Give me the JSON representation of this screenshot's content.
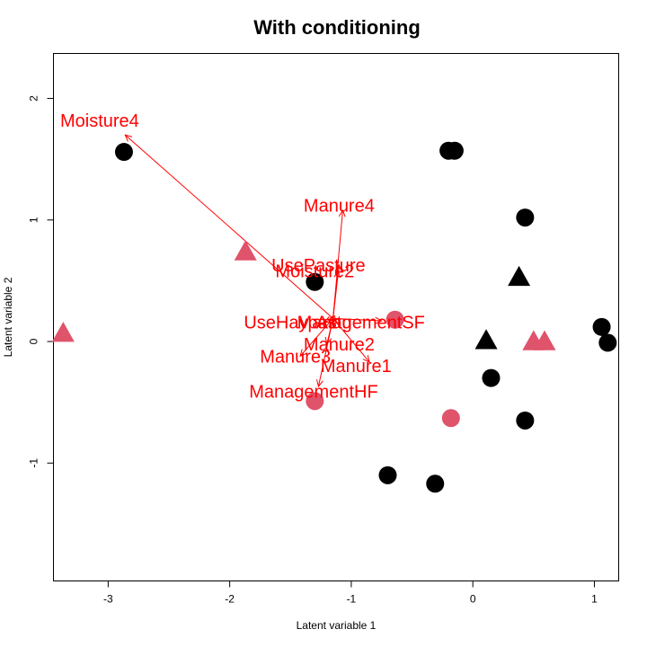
{
  "chart_data": {
    "type": "scatter",
    "title": "With conditioning",
    "xlabel": "Latent variable 1",
    "ylabel": "Latent variable 2",
    "xlim": [
      -3.45,
      1.2
    ],
    "ylim": [
      -1.97,
      2.37
    ],
    "xticks": [
      -3,
      -2,
      -1,
      0,
      1
    ],
    "yticks": [
      -1,
      0,
      1,
      2
    ],
    "colors": {
      "black": "#000000",
      "pink": "#DF536B",
      "arrow": "#FF0000"
    },
    "points": [
      {
        "x": -2.87,
        "y": 1.56,
        "shape": "circle",
        "color": "black"
      },
      {
        "x": -0.2,
        "y": 1.57,
        "shape": "circle",
        "color": "black"
      },
      {
        "x": -0.15,
        "y": 1.57,
        "shape": "circle",
        "color": "black"
      },
      {
        "x": 0.43,
        "y": 1.02,
        "shape": "circle",
        "color": "black"
      },
      {
        "x": -1.3,
        "y": 0.49,
        "shape": "circle",
        "color": "black"
      },
      {
        "x": 1.06,
        "y": 0.12,
        "shape": "circle",
        "color": "black"
      },
      {
        "x": 1.11,
        "y": -0.01,
        "shape": "circle",
        "color": "black"
      },
      {
        "x": 0.15,
        "y": -0.3,
        "shape": "circle",
        "color": "black"
      },
      {
        "x": 0.43,
        "y": -0.65,
        "shape": "circle",
        "color": "black"
      },
      {
        "x": -0.7,
        "y": -1.1,
        "shape": "circle",
        "color": "black"
      },
      {
        "x": -0.31,
        "y": -1.17,
        "shape": "circle",
        "color": "black"
      },
      {
        "x": -0.64,
        "y": 0.18,
        "shape": "circle",
        "color": "pink"
      },
      {
        "x": -0.18,
        "y": -0.63,
        "shape": "circle",
        "color": "pink"
      },
      {
        "x": -1.3,
        "y": -0.49,
        "shape": "circle",
        "color": "pink"
      },
      {
        "x": -1.87,
        "y": 0.74,
        "shape": "triangle",
        "color": "pink"
      },
      {
        "x": -3.37,
        "y": 0.07,
        "shape": "triangle",
        "color": "pink"
      },
      {
        "x": 0.5,
        "y": 0.0,
        "shape": "triangle",
        "color": "pink"
      },
      {
        "x": 0.59,
        "y": 0.0,
        "shape": "triangle",
        "color": "pink"
      },
      {
        "x": 0.38,
        "y": 0.53,
        "shape": "triangle",
        "color": "black"
      },
      {
        "x": 0.11,
        "y": 0.01,
        "shape": "triangle",
        "color": "black"
      }
    ],
    "arrow_origin": [
      -1.15,
      0.19
    ],
    "arrows": [
      {
        "label": "Moisture4",
        "x": -2.86,
        "y": 1.7,
        "label_x": -3.07,
        "label_y": 1.82
      },
      {
        "label": "Manure4",
        "x": -1.07,
        "y": 1.08,
        "label_x": -1.1,
        "label_y": 1.12
      },
      {
        "label": "UsePasture",
        "x": -1.1,
        "y": 0.63,
        "label_x": -1.27,
        "label_y": 0.63
      },
      {
        "label": "Moisture2",
        "x": -1.11,
        "y": 0.58,
        "label_x": -1.3,
        "label_y": 0.58
      },
      {
        "label": "ManagementSF",
        "x": -0.75,
        "y": 0.17,
        "label_x": -0.92,
        "label_y": 0.16
      },
      {
        "label": "UseHaypastu",
        "x": -1.22,
        "y": 0.16,
        "label_x": -1.44,
        "label_y": 0.16
      },
      {
        "label": "A1",
        "x": -1.12,
        "y": 0.16,
        "label_x": -1.2,
        "label_y": 0.16
      },
      {
        "label": "Manure2",
        "x": -1.2,
        "y": -0.02,
        "label_x": -1.1,
        "label_y": -0.02
      },
      {
        "label": "Manure3",
        "x": -1.42,
        "y": -0.12,
        "label_x": -1.46,
        "label_y": -0.12
      },
      {
        "label": "Manure1",
        "x": -0.85,
        "y": -0.17,
        "label_x": -0.96,
        "label_y": -0.2
      },
      {
        "label": "ManagementHF",
        "x": -1.27,
        "y": -0.37,
        "label_x": -1.31,
        "label_y": -0.41
      }
    ]
  }
}
